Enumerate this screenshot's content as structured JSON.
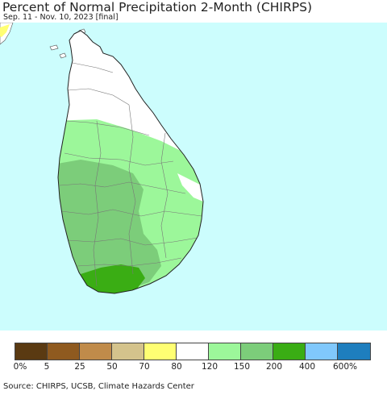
{
  "header": {
    "title": "Percent of Normal Precipitation 2-Month (CHIRPS)",
    "subtitle": "Sep. 11 - Nov. 10, 2023 [final]"
  },
  "map": {
    "ocean_color": "#ccfdfd",
    "land_no_data_color": "#ffffff",
    "regions_shown": [
      "Sri Lanka",
      "southern India (corner)"
    ]
  },
  "legend": {
    "colors": [
      "#5a3a12",
      "#8f5a1f",
      "#c08b4a",
      "#d4c38c",
      "#ffff73",
      "#ffffff",
      "#9cf79a",
      "#7ccd7a",
      "#3aad14",
      "#80c8fc",
      "#1e7ebe"
    ],
    "tick_labels": [
      "0%",
      "5",
      "25",
      "50",
      "70",
      "80",
      "120",
      "150",
      "200",
      "400",
      "600%"
    ]
  },
  "footer": {
    "source": "Source: CHIRPS, UCSB, Climate Hazards Center"
  }
}
